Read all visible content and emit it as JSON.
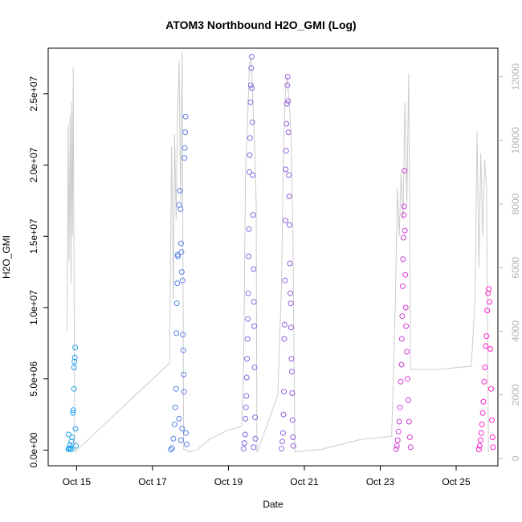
{
  "chart_data": {
    "type": "scatter",
    "title": "ATOM3 Northbound H2O_GMI (Log)",
    "xlabel": "Date",
    "ylabel": "H2O_GMI",
    "x_ticks": [
      "Oct 15",
      "Oct 17",
      "Oct 19",
      "Oct 21",
      "Oct 23",
      "Oct 25"
    ],
    "x_tick_days": [
      15,
      17,
      19,
      21,
      23,
      25
    ],
    "x_range_days": [
      14.25,
      26.1
    ],
    "y_ticks": [
      "0.0e+00",
      "5.0e+06",
      "1.0e+07",
      "1.5e+07",
      "2.0e+07",
      "2.5e+07"
    ],
    "y_tick_values": [
      0,
      5000000,
      10000000,
      15000000,
      20000000,
      25000000
    ],
    "ylim": [
      -1100000,
      28200000
    ],
    "y2_ticks": [
      "0",
      "2000",
      "4000",
      "6000",
      "8000",
      "10000",
      "12000"
    ],
    "y2_tick_values": [
      0,
      2000,
      4000,
      6000,
      8000,
      10000,
      12000
    ],
    "y2lim": [
      -230,
      12900
    ],
    "point_color_range": [
      "#1aa3f0",
      "#ff22cc"
    ],
    "altitude_line_color": "#cccccc",
    "series": [
      {
        "points": [
          [
            14.78,
            80000
          ],
          [
            14.8,
            120000
          ],
          [
            14.82,
            350000
          ],
          [
            14.84,
            150000
          ],
          [
            14.86,
            600000
          ],
          [
            14.88,
            900000
          ],
          [
            14.9,
            2600000
          ],
          [
            14.91,
            2800000
          ],
          [
            14.93,
            4300000
          ],
          [
            14.93,
            5800000
          ],
          [
            14.94,
            6200000
          ],
          [
            14.95,
            6500000
          ],
          [
            14.96,
            7200000
          ],
          [
            14.97,
            1500000
          ],
          [
            14.98,
            300000
          ],
          [
            14.79,
            1100000
          ],
          [
            14.85,
            40000
          ]
        ]
      },
      {
        "points": [
          [
            17.48,
            30000
          ],
          [
            17.52,
            150000
          ],
          [
            17.55,
            800000
          ],
          [
            17.58,
            1800000
          ],
          [
            17.6,
            3000000
          ],
          [
            17.62,
            4300000
          ],
          [
            17.63,
            8200000
          ],
          [
            17.64,
            10300000
          ],
          [
            17.65,
            11700000
          ],
          [
            17.66,
            13700000
          ],
          [
            17.67,
            13600000
          ],
          [
            17.7,
            17200000
          ],
          [
            17.72,
            18200000
          ],
          [
            17.74,
            16900000
          ],
          [
            17.75,
            14500000
          ],
          [
            17.76,
            13900000
          ],
          [
            17.77,
            12500000
          ],
          [
            17.79,
            11900000
          ],
          [
            17.8,
            8100000
          ],
          [
            17.81,
            7000000
          ],
          [
            17.82,
            5300000
          ],
          [
            17.83,
            4100000
          ],
          [
            17.84,
            20500000
          ],
          [
            17.85,
            21200000
          ],
          [
            17.86,
            22300000
          ],
          [
            17.87,
            23400000
          ],
          [
            17.88,
            1200000
          ],
          [
            17.9,
            400000
          ],
          [
            17.75,
            700000
          ],
          [
            17.7,
            2200000
          ],
          [
            17.78,
            1500000
          ]
        ]
      },
      {
        "points": [
          [
            19.4,
            100000
          ],
          [
            19.42,
            500000
          ],
          [
            19.44,
            1100000
          ],
          [
            19.45,
            2200000
          ],
          [
            19.46,
            3000000
          ],
          [
            19.47,
            3800000
          ],
          [
            19.48,
            5100000
          ],
          [
            19.49,
            6400000
          ],
          [
            19.5,
            7800000
          ],
          [
            19.51,
            9200000
          ],
          [
            19.52,
            11000000
          ],
          [
            19.53,
            13600000
          ],
          [
            19.54,
            15500000
          ],
          [
            19.55,
            19500000
          ],
          [
            19.56,
            20700000
          ],
          [
            19.57,
            21900000
          ],
          [
            19.58,
            24400000
          ],
          [
            19.59,
            25600000
          ],
          [
            19.6,
            26800000
          ],
          [
            19.61,
            27600000
          ],
          [
            19.62,
            25400000
          ],
          [
            19.63,
            23000000
          ],
          [
            19.64,
            19300000
          ],
          [
            19.65,
            16500000
          ],
          [
            19.66,
            12700000
          ],
          [
            19.67,
            10400000
          ],
          [
            19.68,
            8700000
          ],
          [
            19.69,
            5800000
          ],
          [
            19.7,
            2300000
          ],
          [
            19.71,
            800000
          ],
          [
            19.66,
            200000
          ]
        ]
      },
      {
        "points": [
          [
            20.4,
            100000
          ],
          [
            20.42,
            600000
          ],
          [
            20.44,
            1200000
          ],
          [
            20.45,
            2500000
          ],
          [
            20.46,
            4100000
          ],
          [
            20.47,
            7800000
          ],
          [
            20.48,
            8800000
          ],
          [
            20.49,
            11900000
          ],
          [
            20.5,
            16100000
          ],
          [
            20.51,
            19700000
          ],
          [
            20.52,
            21000000
          ],
          [
            20.53,
            22900000
          ],
          [
            20.54,
            24300000
          ],
          [
            20.55,
            25600000
          ],
          [
            20.56,
            26200000
          ],
          [
            20.57,
            24500000
          ],
          [
            20.58,
            22300000
          ],
          [
            20.59,
            19300000
          ],
          [
            20.6,
            17800000
          ],
          [
            20.61,
            15800000
          ],
          [
            20.62,
            13100000
          ],
          [
            20.63,
            11000000
          ],
          [
            20.64,
            10300000
          ],
          [
            20.65,
            8600000
          ],
          [
            20.66,
            6400000
          ],
          [
            20.67,
            5500000
          ],
          [
            20.68,
            4000000
          ],
          [
            20.69,
            2100000
          ],
          [
            20.7,
            900000
          ],
          [
            20.71,
            300000
          ]
        ]
      },
      {
        "points": [
          [
            23.42,
            80000
          ],
          [
            23.44,
            300000
          ],
          [
            23.46,
            700000
          ],
          [
            23.48,
            1300000
          ],
          [
            23.5,
            2000000
          ],
          [
            23.52,
            3000000
          ],
          [
            23.54,
            4800000
          ],
          [
            23.56,
            6000000
          ],
          [
            23.57,
            7800000
          ],
          [
            23.58,
            9400000
          ],
          [
            23.59,
            11500000
          ],
          [
            23.6,
            13400000
          ],
          [
            23.61,
            14900000
          ],
          [
            23.62,
            16500000
          ],
          [
            23.63,
            17100000
          ],
          [
            23.64,
            19600000
          ],
          [
            23.65,
            15400000
          ],
          [
            23.66,
            12300000
          ],
          [
            23.67,
            10000000
          ],
          [
            23.68,
            8700000
          ],
          [
            23.7,
            6900000
          ],
          [
            23.72,
            5000000
          ],
          [
            23.74,
            3500000
          ],
          [
            23.76,
            2000000
          ],
          [
            23.78,
            900000
          ],
          [
            23.8,
            200000
          ]
        ]
      },
      {
        "points": [
          [
            25.6,
            50000
          ],
          [
            25.62,
            300000
          ],
          [
            25.64,
            700000
          ],
          [
            25.66,
            1200000
          ],
          [
            25.68,
            1800000
          ],
          [
            25.7,
            2600000
          ],
          [
            25.72,
            3400000
          ],
          [
            25.74,
            4800000
          ],
          [
            25.76,
            5800000
          ],
          [
            25.78,
            7300000
          ],
          [
            25.8,
            8000000
          ],
          [
            25.82,
            9800000
          ],
          [
            25.84,
            11000000
          ],
          [
            25.86,
            11300000
          ],
          [
            25.88,
            10400000
          ],
          [
            25.9,
            7100000
          ],
          [
            25.92,
            4300000
          ],
          [
            25.94,
            2100000
          ],
          [
            25.96,
            900000
          ],
          [
            25.97,
            200000
          ]
        ]
      }
    ],
    "altitude_line": [
      [
        14.75,
        4000
      ],
      [
        14.78,
        10500
      ],
      [
        14.8,
        6200
      ],
      [
        14.83,
        10800
      ],
      [
        14.85,
        5500
      ],
      [
        14.87,
        11200
      ],
      [
        14.89,
        7000
      ],
      [
        14.91,
        12300
      ],
      [
        14.95,
        200
      ],
      [
        17.45,
        3000
      ],
      [
        17.5,
        9800
      ],
      [
        17.55,
        5000
      ],
      [
        17.58,
        10200
      ],
      [
        17.62,
        7500
      ],
      [
        17.66,
        10800
      ],
      [
        17.7,
        12500
      ],
      [
        17.74,
        8000
      ],
      [
        17.78,
        12800
      ],
      [
        17.82,
        300
      ],
      [
        18.0,
        200
      ],
      [
        18.2,
        300
      ],
      [
        18.5,
        600
      ],
      [
        19.0,
        900
      ],
      [
        19.35,
        1000
      ],
      [
        19.4,
        3000
      ],
      [
        19.45,
        9000
      ],
      [
        19.5,
        10500
      ],
      [
        19.55,
        12400
      ],
      [
        19.6,
        12600
      ],
      [
        19.65,
        11000
      ],
      [
        19.7,
        9500
      ],
      [
        19.73,
        8000
      ],
      [
        19.75,
        200
      ],
      [
        20.0,
        1000
      ],
      [
        20.3,
        2000
      ],
      [
        20.4,
        5500
      ],
      [
        20.45,
        9800
      ],
      [
        20.5,
        11500
      ],
      [
        20.55,
        12000
      ],
      [
        20.6,
        11200
      ],
      [
        20.65,
        10200
      ],
      [
        20.7,
        7000
      ],
      [
        20.75,
        200
      ],
      [
        21.5,
        300
      ],
      [
        22.5,
        600
      ],
      [
        23.3,
        700
      ],
      [
        23.4,
        5000
      ],
      [
        23.45,
        8500
      ],
      [
        23.5,
        7000
      ],
      [
        23.55,
        9000
      ],
      [
        23.6,
        7500
      ],
      [
        23.65,
        11200
      ],
      [
        23.7,
        8000
      ],
      [
        23.75,
        12100
      ],
      [
        23.8,
        2800
      ],
      [
        24.5,
        2800
      ],
      [
        25.4,
        2900
      ],
      [
        25.5,
        5000
      ],
      [
        25.55,
        10300
      ],
      [
        25.6,
        6000
      ],
      [
        25.65,
        9600
      ],
      [
        25.7,
        7000
      ],
      [
        25.75,
        9400
      ],
      [
        25.8,
        8500
      ],
      [
        25.85,
        200
      ]
    ]
  }
}
